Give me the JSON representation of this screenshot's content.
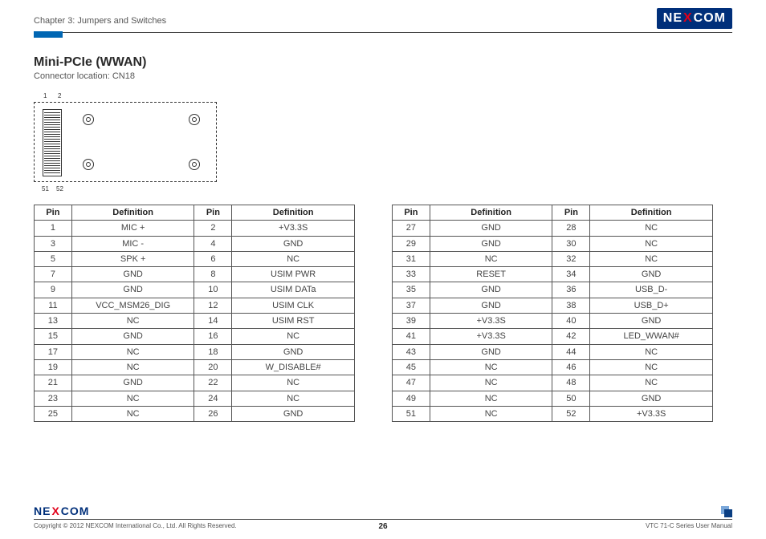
{
  "header": {
    "chapter": "Chapter 3: Jumpers and Switches",
    "logo_left": "NE",
    "logo_mid": "X",
    "logo_right": "COM"
  },
  "section": {
    "title": "Mini-PCIe (WWAN)",
    "subtitle": "Connector location: CN18"
  },
  "diagram": {
    "pin1": "1",
    "pin2": "2",
    "pin51": "51",
    "pin52": "52"
  },
  "table_headers": {
    "pin": "Pin",
    "def": "Definition"
  },
  "table_left": [
    [
      "1",
      "MIC +",
      "2",
      "+V3.3S"
    ],
    [
      "3",
      "MIC -",
      "4",
      "GND"
    ],
    [
      "5",
      "SPK +",
      "6",
      "NC"
    ],
    [
      "7",
      "GND",
      "8",
      "USIM PWR"
    ],
    [
      "9",
      "GND",
      "10",
      "USIM DATa"
    ],
    [
      "11",
      "VCC_MSM26_DIG",
      "12",
      "USIM CLK"
    ],
    [
      "13",
      "NC",
      "14",
      "USIM RST"
    ],
    [
      "15",
      "GND",
      "16",
      "NC"
    ],
    [
      "17",
      "NC",
      "18",
      "GND"
    ],
    [
      "19",
      "NC",
      "20",
      "W_DISABLE#"
    ],
    [
      "21",
      "GND",
      "22",
      "NC"
    ],
    [
      "23",
      "NC",
      "24",
      "NC"
    ],
    [
      "25",
      "NC",
      "26",
      "GND"
    ]
  ],
  "table_right": [
    [
      "27",
      "GND",
      "28",
      "NC"
    ],
    [
      "29",
      "GND",
      "30",
      "NC"
    ],
    [
      "31",
      "NC",
      "32",
      "NC"
    ],
    [
      "33",
      "RESET",
      "34",
      "GND"
    ],
    [
      "35",
      "GND",
      "36",
      "USB_D-"
    ],
    [
      "37",
      "GND",
      "38",
      "USB_D+"
    ],
    [
      "39",
      "+V3.3S",
      "40",
      "GND"
    ],
    [
      "41",
      "+V3.3S",
      "42",
      "LED_WWAN#"
    ],
    [
      "43",
      "GND",
      "44",
      "NC"
    ],
    [
      "45",
      "NC",
      "46",
      "NC"
    ],
    [
      "47",
      "NC",
      "48",
      "NC"
    ],
    [
      "49",
      "NC",
      "50",
      "GND"
    ],
    [
      "51",
      "NC",
      "52",
      "+V3.3S"
    ]
  ],
  "footer": {
    "copyright": "Copyright © 2012 NEXCOM International Co., Ltd. All Rights Reserved.",
    "page": "26",
    "manual": "VTC 71-C Series User Manual"
  }
}
